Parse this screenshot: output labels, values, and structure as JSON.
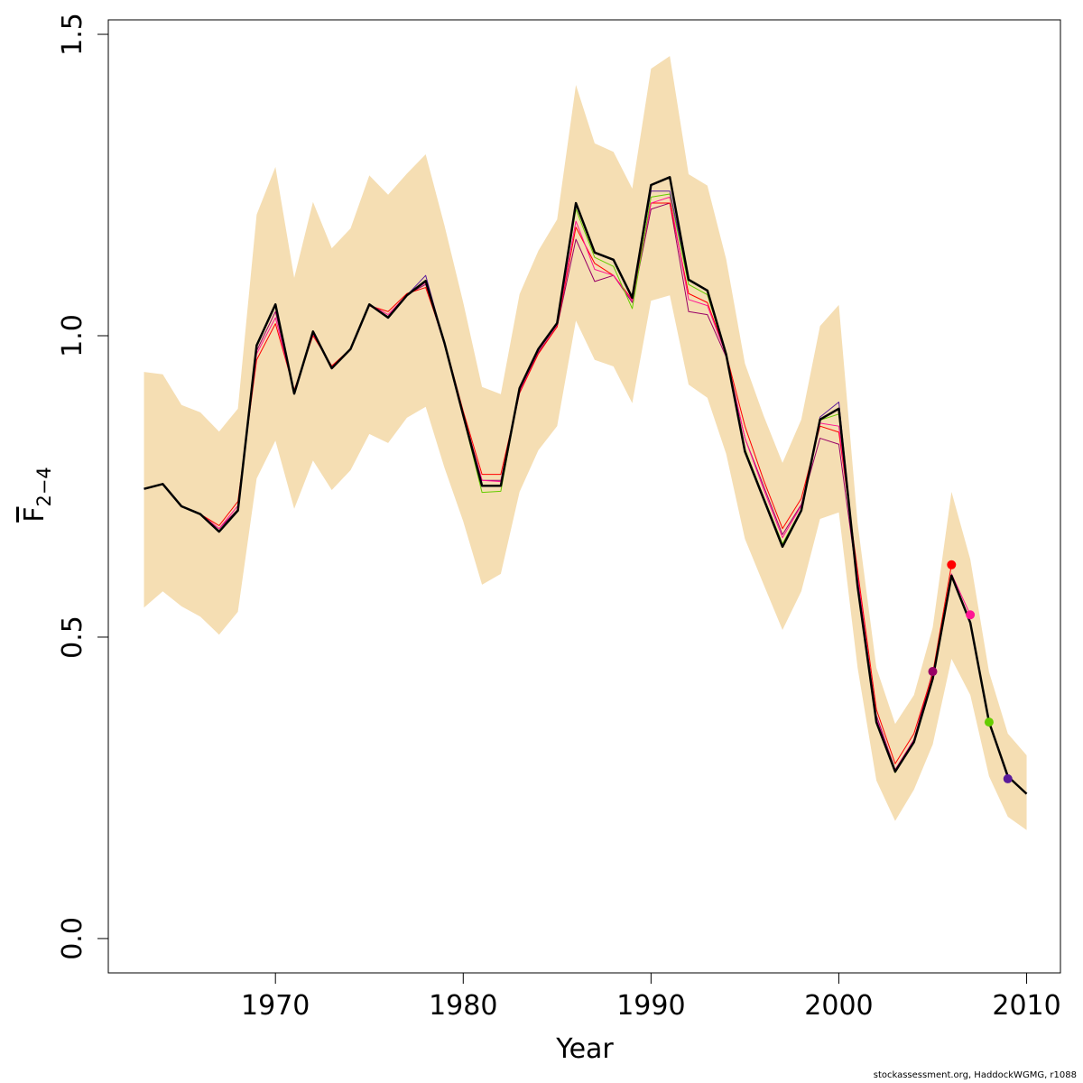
{
  "chart_data": {
    "type": "line",
    "xlabel": "Year",
    "ylabel": "F",
    "ylabel_sub": "2−4",
    "footer": "stockassessment.org, HaddockWGMG, r1088",
    "x": [
      1963,
      1964,
      1965,
      1966,
      1967,
      1968,
      1969,
      1970,
      1971,
      1972,
      1973,
      1974,
      1975,
      1976,
      1977,
      1978,
      1979,
      1980,
      1981,
      1982,
      1983,
      1984,
      1985,
      1986,
      1987,
      1988,
      1989,
      1990,
      1991,
      1992,
      1993,
      1994,
      1995,
      1996,
      1997,
      1998,
      1999,
      2000,
      2001,
      2002,
      2003,
      2004,
      2005,
      2006,
      2007,
      2008,
      2009,
      2010
    ],
    "color": "#000000",
    "values": [
      0.746,
      0.754,
      0.717,
      0.704,
      0.675,
      0.71,
      0.984,
      1.052,
      0.904,
      1.007,
      0.946,
      0.978,
      1.052,
      1.03,
      1.067,
      1.091,
      0.988,
      0.868,
      0.751,
      0.751,
      0.913,
      0.978,
      1.021,
      1.22,
      1.138,
      1.126,
      1.063,
      1.25,
      1.263,
      1.093,
      1.075,
      0.969,
      0.808,
      0.729,
      0.65,
      0.71,
      0.861,
      0.879,
      0.584,
      0.359,
      0.277,
      0.326,
      0.431,
      0.602,
      0.524,
      0.359,
      0.269,
      0.24
    ],
    "band": {
      "color": "#f5deb3",
      "upper": [
        0.94,
        0.936,
        0.885,
        0.873,
        0.841,
        0.879,
        1.201,
        1.28,
        1.096,
        1.222,
        1.145,
        1.178,
        1.266,
        1.234,
        1.269,
        1.301,
        1.183,
        1.055,
        0.915,
        0.903,
        1.069,
        1.141,
        1.193,
        1.416,
        1.319,
        1.305,
        1.244,
        1.443,
        1.464,
        1.268,
        1.249,
        1.127,
        0.954,
        0.867,
        0.789,
        0.861,
        1.016,
        1.051,
        0.689,
        0.449,
        0.356,
        0.404,
        0.516,
        0.741,
        0.629,
        0.442,
        0.34,
        0.304
      ],
      "lower": [
        0.549,
        0.576,
        0.551,
        0.534,
        0.504,
        0.542,
        0.763,
        0.826,
        0.713,
        0.793,
        0.744,
        0.777,
        0.837,
        0.822,
        0.864,
        0.882,
        0.781,
        0.692,
        0.587,
        0.605,
        0.741,
        0.81,
        0.85,
        1.025,
        0.96,
        0.949,
        0.888,
        1.058,
        1.067,
        0.919,
        0.897,
        0.804,
        0.663,
        0.587,
        0.512,
        0.576,
        0.696,
        0.707,
        0.449,
        0.262,
        0.195,
        0.247,
        0.322,
        0.464,
        0.404,
        0.269,
        0.202,
        0.18
      ]
    },
    "series": [
      {
        "color": "#990066",
        "values": [
          0.746,
          0.754,
          0.717,
          0.704,
          0.68,
          0.712,
          0.975,
          1.04,
          0.906,
          1.005,
          0.948,
          0.978,
          1.05,
          1.032,
          1.068,
          1.085,
          0.985,
          0.87,
          0.76,
          0.76,
          0.905,
          0.972,
          1.015,
          1.16,
          1.09,
          1.1,
          1.055,
          1.21,
          1.22,
          1.04,
          1.035,
          0.965,
          0.83,
          0.75,
          0.67,
          0.72,
          0.83,
          0.82,
          0.59,
          0.37,
          0.28,
          0.33,
          0.443,
          null,
          null,
          null,
          null,
          null
        ]
      },
      {
        "color": "#ff0000",
        "values": [
          0.746,
          0.754,
          0.717,
          0.704,
          0.685,
          0.725,
          0.96,
          1.02,
          0.91,
          1.0,
          0.95,
          0.978,
          1.05,
          1.04,
          1.07,
          1.08,
          0.99,
          0.875,
          0.77,
          0.77,
          0.905,
          0.97,
          1.015,
          1.18,
          1.12,
          1.1,
          1.06,
          1.22,
          1.22,
          1.07,
          1.055,
          0.97,
          0.85,
          0.76,
          0.68,
          0.73,
          0.85,
          0.84,
          0.61,
          0.38,
          0.29,
          0.34,
          0.44,
          0.62,
          null,
          null,
          null,
          null
        ]
      },
      {
        "color": "#ff1493",
        "values": [
          0.746,
          0.754,
          0.717,
          0.704,
          0.68,
          0.718,
          0.97,
          1.03,
          0.908,
          1.003,
          0.948,
          0.978,
          1.052,
          1.035,
          1.068,
          1.088,
          0.988,
          0.87,
          0.76,
          0.758,
          0.908,
          0.975,
          1.018,
          1.19,
          1.11,
          1.1,
          1.058,
          1.22,
          1.23,
          1.06,
          1.05,
          0.968,
          0.83,
          0.745,
          0.665,
          0.718,
          0.855,
          0.85,
          0.6,
          0.365,
          0.28,
          0.33,
          0.435,
          0.605,
          0.537,
          null,
          null,
          null
        ]
      },
      {
        "color": "#66cc00",
        "values": [
          0.746,
          0.754,
          0.717,
          0.704,
          0.675,
          0.71,
          0.982,
          1.05,
          0.904,
          1.007,
          0.946,
          0.978,
          1.052,
          1.03,
          1.067,
          1.091,
          0.988,
          0.866,
          0.74,
          0.742,
          0.912,
          0.978,
          1.021,
          1.21,
          1.13,
          1.115,
          1.045,
          1.23,
          1.235,
          1.085,
          1.068,
          0.969,
          0.812,
          0.732,
          0.655,
          0.712,
          0.86,
          0.87,
          0.585,
          0.36,
          0.275,
          0.326,
          0.43,
          0.602,
          0.524,
          0.359,
          null,
          null
        ]
      },
      {
        "color": "#5a1a9a",
        "values": [
          0.746,
          0.754,
          0.717,
          0.704,
          0.675,
          0.71,
          0.984,
          1.052,
          0.904,
          1.007,
          0.946,
          0.978,
          1.052,
          1.03,
          1.067,
          1.1,
          0.988,
          0.868,
          0.751,
          0.751,
          0.913,
          0.978,
          1.021,
          1.22,
          1.138,
          1.126,
          1.063,
          1.24,
          1.24,
          1.093,
          1.075,
          0.969,
          0.808,
          0.729,
          0.652,
          0.71,
          0.865,
          0.89,
          0.586,
          0.359,
          0.277,
          0.326,
          0.431,
          0.602,
          0.524,
          0.359,
          0.265,
          null
        ]
      }
    ],
    "xlim": [
      1961.1,
      2011.8
    ],
    "ylim": [
      -0.057,
      1.524
    ],
    "xticks": [
      1970,
      1980,
      1990,
      2000,
      2010
    ],
    "yticks": [
      {
        "value": 0,
        "label": "0.0"
      },
      0.5,
      {
        "value": 1,
        "label": "1.0"
      },
      1.5
    ]
  }
}
